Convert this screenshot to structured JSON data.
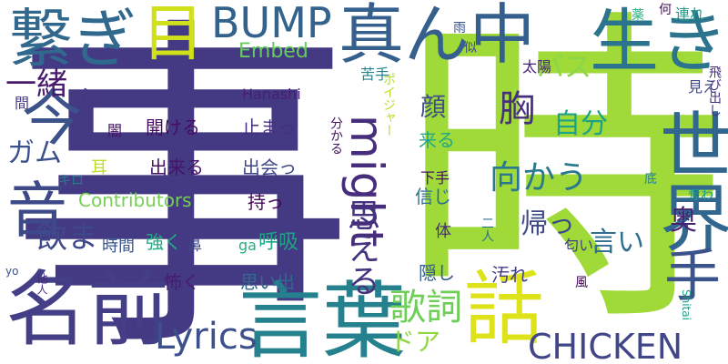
{
  "words": [
    {
      "text": "事",
      "color": "#443983",
      "vertical": false
    },
    {
      "text": "時",
      "color": "#a0da39",
      "vertical": false
    },
    {
      "text": "言葉",
      "color": "#26818e",
      "vertical": false
    },
    {
      "text": "名前",
      "color": "#433e85",
      "vertical": false
    },
    {
      "text": "話",
      "color": "#dde318",
      "vertical": false
    },
    {
      "text": "世界",
      "color": "#31668e",
      "vertical": true
    },
    {
      "text": "生き",
      "color": "#2c738e",
      "vertical": false
    },
    {
      "text": "真ん中",
      "color": "#35608d",
      "vertical": false
    },
    {
      "text": "繋ぎ",
      "color": "#31688e",
      "vertical": false
    },
    {
      "text": "目",
      "color": "#d0e11c",
      "vertical": false
    },
    {
      "text": "今",
      "color": "#3b528b",
      "vertical": false
    },
    {
      "text": "音",
      "color": "#3e4989",
      "vertical": true
    },
    {
      "text": "手",
      "color": "#3a538b",
      "vertical": true
    },
    {
      "text": "BUMP",
      "color": "#33628d",
      "vertical": false
    },
    {
      "text": "might",
      "color": "#472d7b",
      "vertical": true
    },
    {
      "text": "CHICKEN",
      "color": "#404688",
      "vertical": false
    },
    {
      "text": "Lyrics",
      "color": "#3c508b",
      "vertical": false
    },
    {
      "text": "歌詞",
      "color": "#6ece58",
      "vertical": false
    },
    {
      "text": "一緒",
      "color": "#481b6d",
      "vertical": false
    },
    {
      "text": "思える",
      "color": "#46337f",
      "vertical": true
    },
    {
      "text": "向かう",
      "color": "#2a788e",
      "vertical": false
    },
    {
      "text": "飲ま",
      "color": "#3e4989",
      "vertical": false
    },
    {
      "text": "ガム",
      "color": "#3b518b",
      "vertical": false
    },
    {
      "text": "胸",
      "color": "#472f7d",
      "vertical": false
    },
    {
      "text": "自分",
      "color": "#1fa188",
      "vertical": false
    },
    {
      "text": "帰っ",
      "color": "#3e4989",
      "vertical": false
    },
    {
      "text": "言い",
      "color": "#2e6e8e",
      "vertical": false
    },
    {
      "text": "奥",
      "color": "#482173",
      "vertical": false
    },
    {
      "text": "顔",
      "color": "#3d4e8a",
      "vertical": false
    },
    {
      "text": "バス",
      "color": "#8bd646",
      "vertical": false
    },
    {
      "text": "ドア",
      "color": "#90d743",
      "vertical": false
    },
    {
      "text": "Embed",
      "color": "#65cb5e",
      "vertical": false
    },
    {
      "text": "Contributors",
      "color": "#75d054",
      "vertical": false
    },
    {
      "text": "心",
      "color": "#453781",
      "vertical": false
    },
    {
      "text": "開ける",
      "color": "#470d60",
      "vertical": false
    },
    {
      "text": "止まっ",
      "color": "#46307e",
      "vertical": false
    },
    {
      "text": "出来る",
      "color": "#471365",
      "vertical": false
    },
    {
      "text": "出会っ",
      "color": "#3f4788",
      "vertical": false
    },
    {
      "text": "持っ",
      "color": "#46085c",
      "vertical": false
    },
    {
      "text": "Hanashi",
      "color": "#481f70",
      "vertical": false
    },
    {
      "text": "時間",
      "color": "#39558c",
      "vertical": false
    },
    {
      "text": "強く",
      "color": "#24aa83",
      "vertical": false
    },
    {
      "text": "鼻",
      "color": "#3f4889",
      "vertical": false
    },
    {
      "text": "ga",
      "color": "#27ad81",
      "vertical": false
    },
    {
      "text": "呼吸",
      "color": "#20a486",
      "vertical": false
    },
    {
      "text": "怖く",
      "color": "#481c6e",
      "vertical": false
    },
    {
      "text": "思い出",
      "color": "#31688e",
      "vertical": false
    },
    {
      "text": "信じ",
      "color": "#2e6e8e",
      "vertical": false
    },
    {
      "text": "下手",
      "color": "#471164",
      "vertical": false
    },
    {
      "text": "来る",
      "color": "#22a785",
      "vertical": false
    },
    {
      "text": "体",
      "color": "#472d7b",
      "vertical": false
    },
    {
      "text": "隠し",
      "color": "#365c8d",
      "vertical": false
    },
    {
      "text": "汚れ",
      "color": "#433d84",
      "vertical": false
    },
    {
      "text": "分かる",
      "color": "#471365",
      "vertical": true
    },
    {
      "text": "キロ",
      "color": "#29798e",
      "vertical": false
    },
    {
      "text": "耳",
      "color": "#bddf26",
      "vertical": false
    },
    {
      "text": "間",
      "color": "#453882",
      "vertical": false
    },
    {
      "text": "闇",
      "color": "#481467",
      "vertical": false
    },
    {
      "text": "雨",
      "color": "#3b528b",
      "vertical": false
    },
    {
      "text": "似",
      "color": "#414487",
      "vertical": false
    },
    {
      "text": "苦手",
      "color": "#26828e",
      "vertical": false
    },
    {
      "text": "太陽",
      "color": "#482475",
      "vertical": false
    },
    {
      "text": "何",
      "color": "#460a5d",
      "vertical": false
    },
    {
      "text": "薬",
      "color": "#2ab07f",
      "vertical": false
    },
    {
      "text": "連れ",
      "color": "#1f9e89",
      "vertical": false
    },
    {
      "text": "ポイジャー",
      "color": "#b8de29",
      "vertical": true
    },
    {
      "text": "見え",
      "color": "#3f4788",
      "vertical": false
    },
    {
      "text": "飛び出し",
      "color": "#46307e",
      "vertical": true
    },
    {
      "text": "底",
      "color": "#26828e",
      "vertical": false
    },
    {
      "text": "奪わ",
      "color": "#1f9a8a",
      "vertical": false
    },
    {
      "text": "二人",
      "color": "#2c728e",
      "vertical": true
    },
    {
      "text": "匂い",
      "color": "#424186",
      "vertical": false
    },
    {
      "text": "風",
      "color": "#440154",
      "vertical": false
    },
    {
      "text": "Shitai",
      "color": "#1fa188",
      "vertical": true
    },
    {
      "text": "他人",
      "color": "#472a7a",
      "vertical": true
    },
    {
      "text": "yo",
      "color": "#3b528b",
      "vertical": false
    }
  ]
}
